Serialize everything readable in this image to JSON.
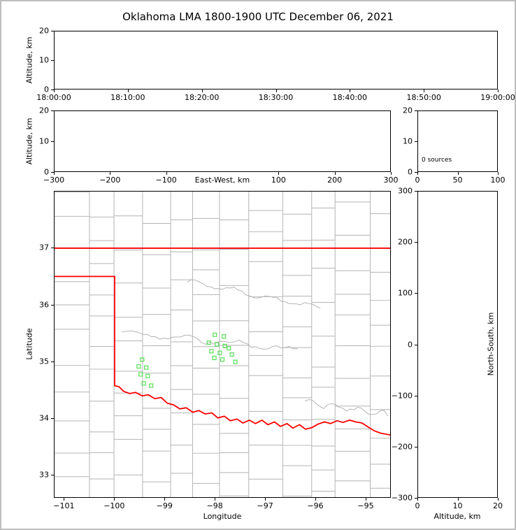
{
  "title": "Oklahoma LMA 1800-1900 UTC December 06, 2021",
  "colors": {
    "state_border": "#ff0000",
    "county_lines": "#b4b4b4",
    "stations": "#55e055",
    "axes": "#000000",
    "figure_border": "#bdbdbd",
    "background": "#ffffff"
  },
  "chart_data": [
    {
      "id": "time_height",
      "type": "scatter",
      "xlabel": "",
      "ylabel": "Altitude, km",
      "xtick_labels": [
        "18:00:00",
        "18:10:00",
        "18:20:00",
        "18:30:00",
        "18:40:00",
        "18:50:00",
        "19:00:00"
      ],
      "yticks": [
        0,
        10,
        20
      ],
      "ylim": [
        0,
        20
      ],
      "points": []
    },
    {
      "id": "ew_height",
      "type": "scatter",
      "xlabel": "East-West, km",
      "ylabel": "Altitude, km",
      "xticks": [
        -300,
        -200,
        -100,
        100,
        200,
        300
      ],
      "xlim": [
        -300,
        300
      ],
      "yticks": [
        0,
        10,
        20
      ],
      "ylim": [
        0,
        20
      ],
      "points": []
    },
    {
      "id": "alt_histogram",
      "type": "line",
      "annotation": "0 sources",
      "xticks": [
        0,
        50,
        100
      ],
      "xlim": [
        0,
        100
      ],
      "yticks": [
        0,
        10,
        20
      ],
      "ylim": [
        0,
        20
      ],
      "points": []
    },
    {
      "id": "plan_map",
      "type": "scatter",
      "xlabel": "Longitude",
      "ylabel": "Latitude",
      "xticks": [
        -101,
        -100,
        -99,
        -98,
        -97,
        -96,
        -95
      ],
      "xlim": [
        -101.2,
        -94.5
      ],
      "yticks": [
        33,
        34,
        35,
        36,
        37
      ],
      "ylim": [
        32.6,
        38.0
      ],
      "stations": [
        [
          -98.0,
          35.47
        ],
        [
          -97.82,
          35.44
        ],
        [
          -98.12,
          35.33
        ],
        [
          -97.96,
          35.3
        ],
        [
          -97.8,
          35.27
        ],
        [
          -98.07,
          35.18
        ],
        [
          -97.9,
          35.15
        ],
        [
          -97.72,
          35.23
        ],
        [
          -98.01,
          35.06
        ],
        [
          -97.85,
          35.03
        ],
        [
          -97.66,
          35.12
        ],
        [
          -97.59,
          34.99
        ],
        [
          -99.45,
          35.03
        ],
        [
          -99.52,
          34.91
        ],
        [
          -99.37,
          34.89
        ],
        [
          -99.48,
          34.77
        ],
        [
          -99.34,
          34.74
        ],
        [
          -99.42,
          34.61
        ],
        [
          -99.27,
          34.57
        ]
      ],
      "state_borders": {
        "kansas_oklahoma": [
          [
            -101.2,
            37.0
          ],
          [
            -94.5,
            37.0
          ]
        ],
        "panhandle_south": [
          [
            -101.2,
            36.5
          ],
          [
            -100.0,
            36.5
          ]
        ],
        "meridian_100w": [
          [
            -100.0,
            36.5
          ],
          [
            -100.0,
            34.57
          ]
        ],
        "red_river": [
          [
            -100.0,
            34.57
          ],
          [
            -99.91,
            34.55
          ],
          [
            -99.82,
            34.47
          ],
          [
            -99.7,
            34.43
          ],
          [
            -99.58,
            34.45
          ],
          [
            -99.45,
            34.39
          ],
          [
            -99.33,
            34.41
          ],
          [
            -99.2,
            34.34
          ],
          [
            -99.07,
            34.36
          ],
          [
            -98.95,
            34.26
          ],
          [
            -98.82,
            34.23
          ],
          [
            -98.7,
            34.16
          ],
          [
            -98.57,
            34.18
          ],
          [
            -98.44,
            34.1
          ],
          [
            -98.32,
            34.13
          ],
          [
            -98.19,
            34.07
          ],
          [
            -98.06,
            34.09
          ],
          [
            -97.94,
            34.0
          ],
          [
            -97.81,
            34.03
          ],
          [
            -97.69,
            33.95
          ],
          [
            -97.56,
            33.98
          ],
          [
            -97.44,
            33.91
          ],
          [
            -97.31,
            33.96
          ],
          [
            -97.19,
            33.9
          ],
          [
            -97.06,
            33.96
          ],
          [
            -96.94,
            33.88
          ],
          [
            -96.81,
            33.93
          ],
          [
            -96.69,
            33.85
          ],
          [
            -96.56,
            33.9
          ],
          [
            -96.44,
            33.82
          ],
          [
            -96.31,
            33.88
          ],
          [
            -96.19,
            33.8
          ],
          [
            -96.06,
            33.83
          ],
          [
            -95.94,
            33.89
          ],
          [
            -95.81,
            33.93
          ],
          [
            -95.69,
            33.9
          ],
          [
            -95.56,
            33.95
          ],
          [
            -95.44,
            33.92
          ],
          [
            -95.31,
            33.96
          ],
          [
            -95.19,
            33.93
          ],
          [
            -95.06,
            33.91
          ],
          [
            -94.94,
            33.84
          ],
          [
            -94.81,
            33.77
          ],
          [
            -94.69,
            33.73
          ],
          [
            -94.5,
            33.7
          ]
        ]
      }
    },
    {
      "id": "ns_height",
      "type": "scatter",
      "xlabel": "Altitude, km",
      "ylabel": "North-South, km",
      "xticks": [
        0,
        10,
        20
      ],
      "xlim": [
        0,
        20
      ],
      "yticks": [
        -300,
        -200,
        -100,
        0,
        100,
        200,
        300
      ],
      "ylim": [
        -300,
        300
      ],
      "points": []
    }
  ]
}
